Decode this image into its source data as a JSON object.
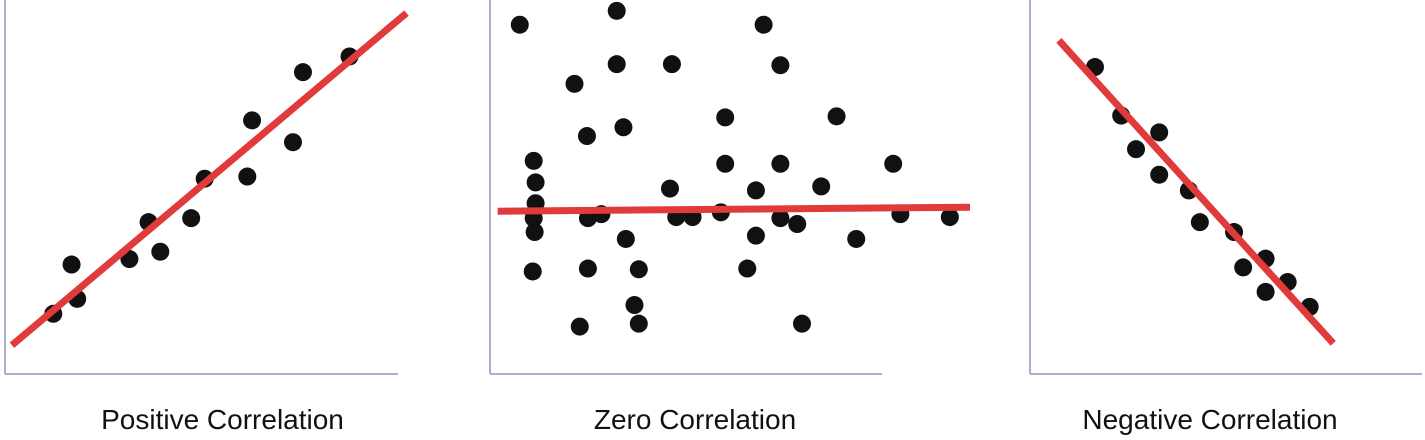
{
  "colors": {
    "point": "#111111",
    "fit_line": "#e03a3a",
    "axis": "#8f95c2",
    "caption": "#111111"
  },
  "chart_data": [
    {
      "type": "scatter",
      "title": "Positive Correlation",
      "xlabel": "",
      "ylabel": "",
      "xlim": [
        0,
        100
      ],
      "ylim": [
        0,
        100
      ],
      "grid": false,
      "points": [
        {
          "x": 11.1,
          "y": 15.4
        },
        {
          "x": 15.3,
          "y": 28.9
        },
        {
          "x": 16.6,
          "y": 19.5
        },
        {
          "x": 28.6,
          "y": 30.4
        },
        {
          "x": 33.0,
          "y": 40.5
        },
        {
          "x": 35.7,
          "y": 32.4
        },
        {
          "x": 42.8,
          "y": 41.6
        },
        {
          "x": 45.9,
          "y": 52.4
        },
        {
          "x": 55.7,
          "y": 53.0
        },
        {
          "x": 56.8,
          "y": 68.4
        },
        {
          "x": 66.2,
          "y": 62.4
        },
        {
          "x": 68.5,
          "y": 81.6
        },
        {
          "x": 79.2,
          "y": 85.9
        }
      ],
      "fit_line": {
        "x": [
          1.6,
          92.3
        ],
        "y": [
          6.8,
          97.8
        ]
      }
    },
    {
      "type": "scatter",
      "title": "Zero Correlation",
      "xlabel": "",
      "ylabel": "",
      "xlim": [
        0,
        100
      ],
      "ylim": [
        0,
        100
      ],
      "grid": false,
      "points": [
        {
          "x": 6.2,
          "y": 94.6
        },
        {
          "x": 8.9,
          "y": 27.0
        },
        {
          "x": 9.3,
          "y": 37.8
        },
        {
          "x": 9.1,
          "y": 41.6
        },
        {
          "x": 9.5,
          "y": 51.4
        },
        {
          "x": 9.1,
          "y": 57.3
        },
        {
          "x": 9.5,
          "y": 45.7
        },
        {
          "x": 17.6,
          "y": 78.4
        },
        {
          "x": 18.7,
          "y": 11.9
        },
        {
          "x": 20.2,
          "y": 64.1
        },
        {
          "x": 20.4,
          "y": 41.6
        },
        {
          "x": 20.4,
          "y": 27.8
        },
        {
          "x": 23.2,
          "y": 42.7
        },
        {
          "x": 26.4,
          "y": 98.4
        },
        {
          "x": 26.4,
          "y": 83.8
        },
        {
          "x": 27.8,
          "y": 66.5
        },
        {
          "x": 28.3,
          "y": 35.9
        },
        {
          "x": 30.1,
          "y": 17.8
        },
        {
          "x": 31.0,
          "y": 27.6
        },
        {
          "x": 31.0,
          "y": 12.7
        },
        {
          "x": 37.5,
          "y": 49.7
        },
        {
          "x": 37.9,
          "y": 83.8
        },
        {
          "x": 38.8,
          "y": 41.9
        },
        {
          "x": 42.2,
          "y": 41.9
        },
        {
          "x": 48.1,
          "y": 43.2
        },
        {
          "x": 49.0,
          "y": 69.2
        },
        {
          "x": 49.0,
          "y": 56.5
        },
        {
          "x": 53.6,
          "y": 27.8
        },
        {
          "x": 55.4,
          "y": 36.8
        },
        {
          "x": 55.4,
          "y": 49.2
        },
        {
          "x": 57.0,
          "y": 94.6
        },
        {
          "x": 60.5,
          "y": 83.5
        },
        {
          "x": 60.5,
          "y": 56.5
        },
        {
          "x": 60.5,
          "y": 41.6
        },
        {
          "x": 64.0,
          "y": 40.0
        },
        {
          "x": 65.0,
          "y": 12.7
        },
        {
          "x": 69.0,
          "y": 50.3
        },
        {
          "x": 72.2,
          "y": 69.5
        },
        {
          "x": 76.3,
          "y": 35.9
        },
        {
          "x": 84.0,
          "y": 56.5
        },
        {
          "x": 85.5,
          "y": 42.7
        },
        {
          "x": 95.8,
          "y": 41.9
        }
      ],
      "fit_line": {
        "x": [
          1.6,
          100.0
        ],
        "y": [
          43.5,
          44.6
        ]
      }
    },
    {
      "type": "scatter",
      "title": "Negative Correlation",
      "xlabel": "",
      "ylabel": "",
      "xlim": [
        0,
        100
      ],
      "ylim": [
        0,
        100
      ],
      "grid": false,
      "points": [
        {
          "x": 17.1,
          "y": 83.0
        },
        {
          "x": 24.0,
          "y": 69.7
        },
        {
          "x": 27.9,
          "y": 60.5
        },
        {
          "x": 34.0,
          "y": 65.1
        },
        {
          "x": 34.0,
          "y": 53.5
        },
        {
          "x": 41.8,
          "y": 49.2
        },
        {
          "x": 44.7,
          "y": 40.5
        },
        {
          "x": 53.7,
          "y": 37.8
        },
        {
          "x": 56.1,
          "y": 28.1
        },
        {
          "x": 62.0,
          "y": 30.5
        },
        {
          "x": 62.0,
          "y": 21.4
        },
        {
          "x": 67.8,
          "y": 24.1
        },
        {
          "x": 73.6,
          "y": 17.3
        }
      ],
      "fit_line": {
        "x": [
          7.6,
          79.8
        ],
        "y": [
          90.3,
          7.3
        ]
      }
    }
  ],
  "captions": {
    "positive": "Positive Correlation",
    "zero": "Zero Correlation",
    "negative": "Negative Correlation"
  }
}
